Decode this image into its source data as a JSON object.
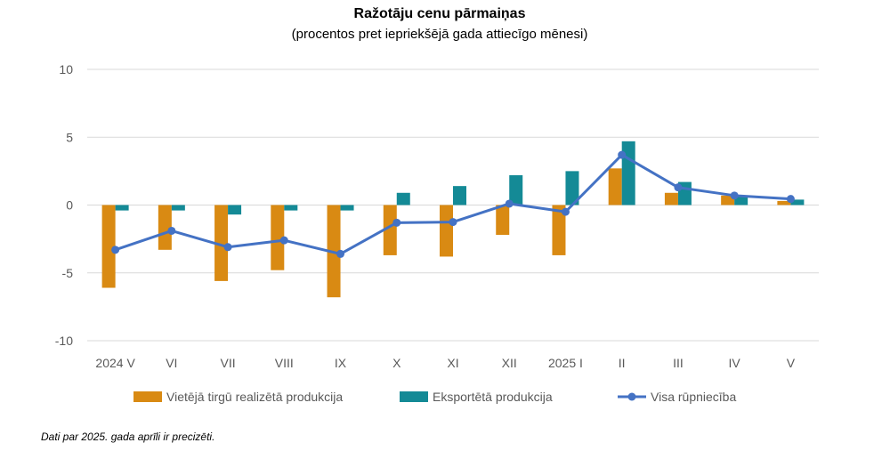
{
  "title": "Ražotāju cenu pārmaiņas",
  "subtitle": "(procentos pret iepriekšējā gada attiecīgo mēnesi)",
  "note": "Dati par 2025. gada aprīli ir precizēti.",
  "chart_data": {
    "type": "bar",
    "title": "Ražotāju cenu pārmaiņas",
    "subtitle": "(procentos pret iepriekšējā gada attiecīgo mēnesi)",
    "categories": [
      "2024 V",
      "VI",
      "VII",
      "VIII",
      "IX",
      "X",
      "XI",
      "XII",
      "2025 I",
      "II",
      "III",
      "IV",
      "V"
    ],
    "yticks": [
      "10",
      "5",
      "0",
      "-5",
      "-10"
    ],
    "ylim": [
      -10,
      10
    ],
    "grid": true,
    "legend_position": "bottom",
    "series": [
      {
        "name": "Vietējā tirgū realizētā produkcija",
        "type": "bar",
        "color": "#D98A13",
        "values": [
          -6.1,
          -3.3,
          -5.6,
          -4.8,
          -6.8,
          -3.7,
          -3.8,
          -2.2,
          -3.7,
          2.7,
          0.9,
          0.7,
          0.3
        ]
      },
      {
        "name": "Eksportētā produkcija",
        "type": "bar",
        "color": "#148A96",
        "values": [
          -0.4,
          -0.4,
          -0.7,
          -0.4,
          -0.4,
          0.9,
          1.4,
          2.2,
          2.5,
          4.7,
          1.7,
          0.6,
          0.4
        ]
      },
      {
        "name": "Visa rūpniecība",
        "type": "line",
        "color": "#4472C4",
        "values": [
          -3.3,
          -1.9,
          -3.1,
          -2.6,
          -3.6,
          -1.3,
          -1.25,
          0.1,
          -0.5,
          3.7,
          1.3,
          0.7,
          0.45
        ]
      }
    ]
  }
}
